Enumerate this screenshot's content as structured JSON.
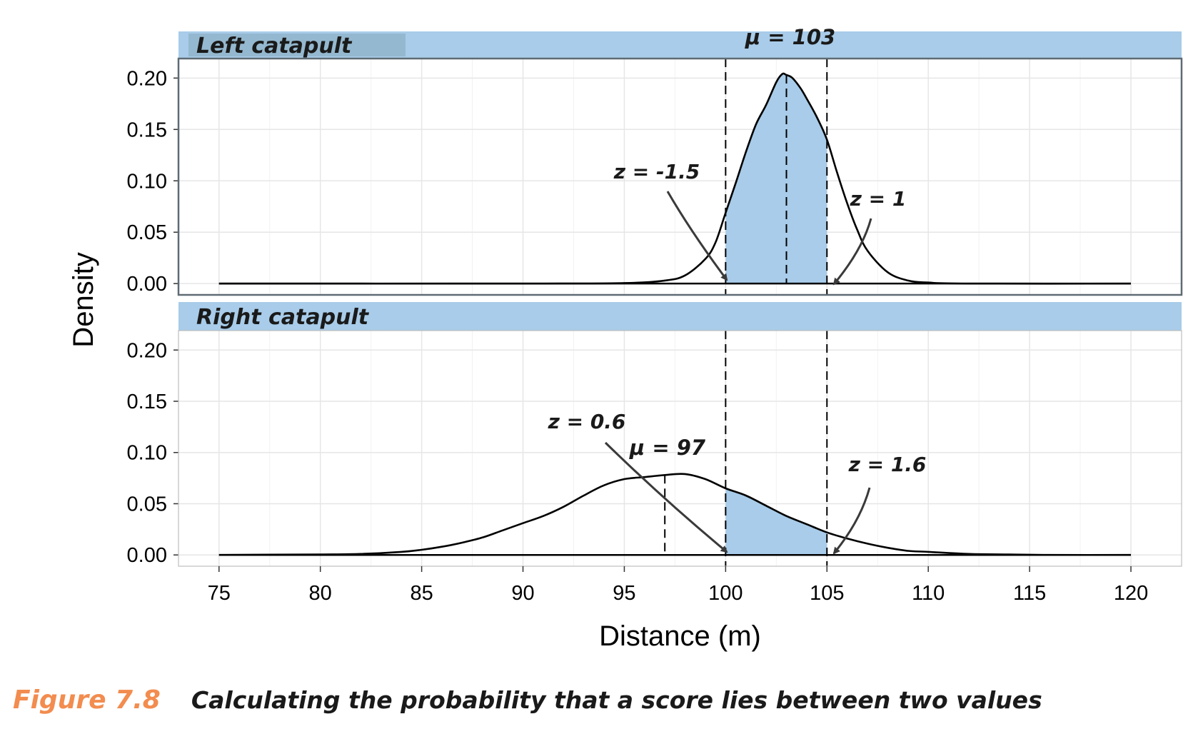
{
  "chart_data": {
    "type": "area",
    "xlabel": "Distance (m)",
    "ylabel": "Density",
    "xlim": [
      73,
      122.5
    ],
    "ylim": [
      -0.011,
      0.219
    ],
    "x_ticks": [
      75,
      80,
      85,
      90,
      95,
      100,
      105,
      110,
      115,
      120
    ],
    "y_ticks": [
      "0.00",
      "0.05",
      "0.10",
      "0.15",
      "0.20"
    ],
    "grid": true,
    "reference_lines": [
      100,
      105
    ],
    "shade_between": [
      100,
      105
    ],
    "colors": {
      "strip": "#a8cce9",
      "shade": "#a8cce9",
      "line": "#000000",
      "grid": "#e6e6e6",
      "strip_tag": "#94b8cf"
    },
    "panels": [
      {
        "title": "Left catapult",
        "mean_label": "μ = 103",
        "mean": 103,
        "x": [
          75,
          90,
          95,
          97,
          98,
          99,
          99.5,
          100,
          100.5,
          101,
          101.5,
          102,
          102.5,
          102.8,
          103,
          103.3,
          103.7,
          104,
          104.5,
          105,
          105.5,
          106,
          106.5,
          107,
          108,
          109,
          110,
          112,
          120
        ],
        "y": [
          0,
          0,
          0.0005,
          0.003,
          0.008,
          0.024,
          0.04,
          0.069,
          0.098,
          0.128,
          0.155,
          0.174,
          0.196,
          0.204,
          0.203,
          0.2,
          0.19,
          0.18,
          0.162,
          0.14,
          0.108,
          0.078,
          0.052,
          0.032,
          0.011,
          0.003,
          0.001,
          0,
          0
        ],
        "annotations": [
          {
            "text": "z = -1.5",
            "target": 100
          },
          {
            "text": "z = 1",
            "target": 105
          }
        ]
      },
      {
        "title": "Right catapult",
        "mean_label": "μ = 97",
        "mean": 97,
        "x": [
          75,
          80,
          82,
          84,
          85,
          86,
          87,
          88,
          89,
          90,
          91,
          92,
          93,
          94,
          95,
          96,
          97,
          98,
          99,
          100,
          101,
          102,
          103,
          104,
          105,
          106,
          107,
          108,
          109,
          110,
          112,
          114,
          116,
          120
        ],
        "y": [
          0,
          0.0005,
          0.001,
          0.003,
          0.005,
          0.008,
          0.012,
          0.017,
          0.024,
          0.031,
          0.038,
          0.047,
          0.058,
          0.068,
          0.074,
          0.076,
          0.078,
          0.079,
          0.074,
          0.065,
          0.058,
          0.048,
          0.038,
          0.03,
          0.022,
          0.016,
          0.011,
          0.007,
          0.004,
          0.003,
          0.001,
          0.0005,
          0,
          0
        ],
        "annotations": [
          {
            "text": "z = 0.6",
            "target": 100
          },
          {
            "text": "z = 1.6",
            "target": 105
          }
        ]
      }
    ]
  },
  "caption": {
    "figure_number": "Figure 7.8",
    "text": "Calculating the probability that a score lies between two values"
  }
}
